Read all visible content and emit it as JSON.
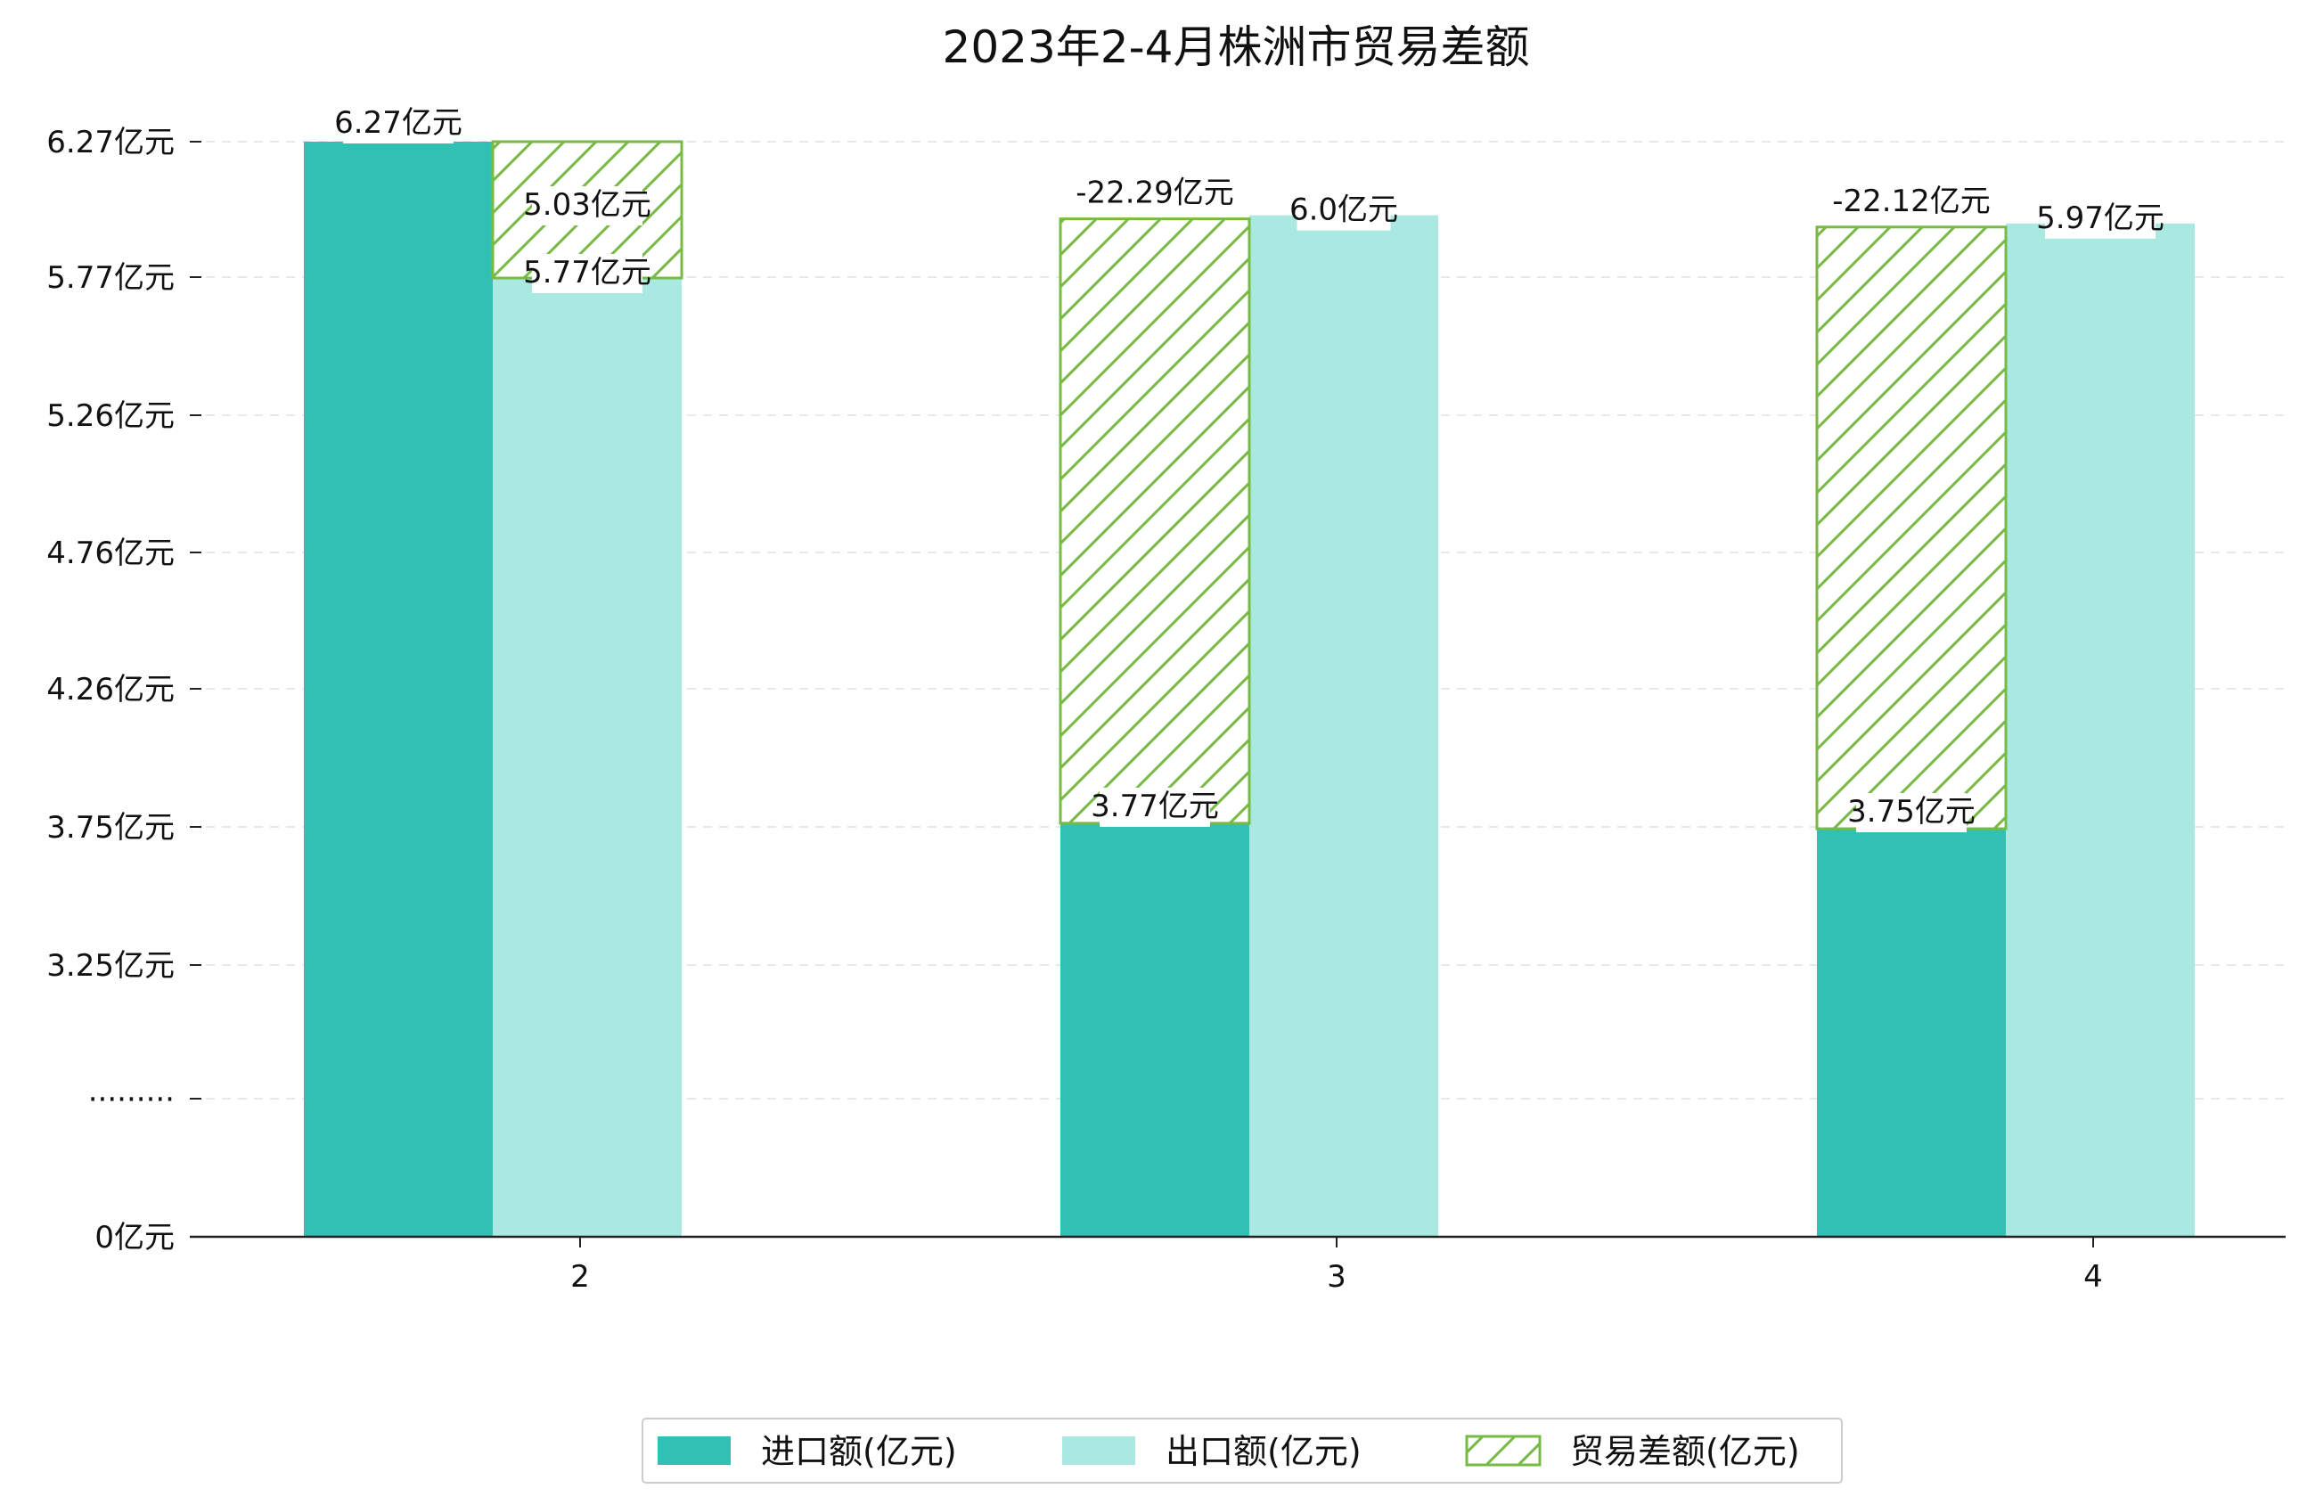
{
  "chart_data": {
    "type": "bar",
    "title": "2023年2-4月株洲市贸易差额",
    "xlabel": "",
    "ylabel": "",
    "categories": [
      "2",
      "3",
      "4"
    ],
    "y_tick_labels": [
      "0亿元",
      "·········",
      "3.25亿元",
      "3.75亿元",
      "4.26亿元",
      "4.76亿元",
      "5.26亿元",
      "5.77亿元",
      "6.27亿元"
    ],
    "y_break": true,
    "grid": "horizontal dashed",
    "legend_position": "bottom-center",
    "series": [
      {
        "name": "进口额(亿元)",
        "values": [
          6.27,
          3.77,
          3.75
        ],
        "labels": [
          "6.27亿元",
          "3.77亿元",
          "3.75亿元"
        ],
        "color": "#33c0b4",
        "pattern": "solid"
      },
      {
        "name": "出口额(亿元)",
        "values": [
          5.77,
          6.0,
          5.97
        ],
        "labels": [
          "5.77亿元",
          "6.0亿元",
          "5.97亿元"
        ],
        "color": "#aae8e2",
        "pattern": "solid"
      },
      {
        "name": "贸易差额(亿元)",
        "values": [
          5.03,
          -22.29,
          -22.12
        ],
        "labels": [
          "5.03亿元",
          "-22.29亿元",
          "-22.12亿元"
        ],
        "color": "#77bb44",
        "pattern": "hatch"
      }
    ]
  }
}
